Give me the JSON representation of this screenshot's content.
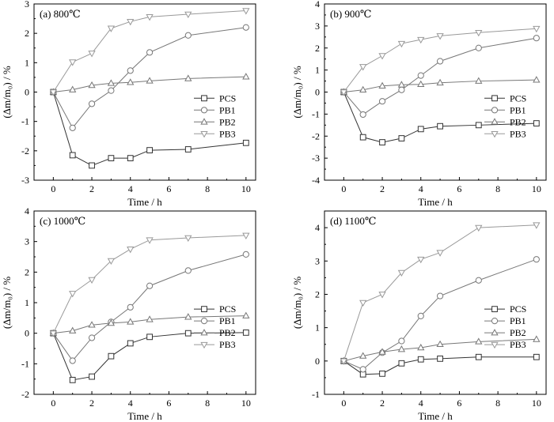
{
  "chart_data": [
    {
      "type": "line",
      "title": "(a) 800℃",
      "xlabel": "Time / h",
      "ylabel": "(Δm/m₀) / %",
      "xlim": [
        -1,
        10.5
      ],
      "ylim": [
        -3,
        3
      ],
      "xticks": [
        0,
        2,
        4,
        6,
        8,
        10
      ],
      "yticks": [
        -3,
        -2,
        -1,
        0,
        1,
        2,
        3
      ],
      "legend_position": "center-right",
      "series": [
        {
          "name": "PCS",
          "marker": "square",
          "color": "#333333",
          "x": [
            0,
            1,
            2,
            3,
            4,
            5,
            7,
            10
          ],
          "y": [
            0,
            -2.15,
            -2.5,
            -2.25,
            -2.25,
            -1.98,
            -1.95,
            -1.73
          ]
        },
        {
          "name": "PB1",
          "marker": "circle",
          "color": "#777777",
          "x": [
            0,
            1,
            2,
            3,
            4,
            5,
            7,
            10
          ],
          "y": [
            0,
            -1.22,
            -0.4,
            0.05,
            0.73,
            1.35,
            1.93,
            2.2
          ]
        },
        {
          "name": "PB2",
          "marker": "triangle-up",
          "color": "#777777",
          "x": [
            0,
            1,
            2,
            3,
            4,
            5,
            7,
            10
          ],
          "y": [
            0,
            0.08,
            0.23,
            0.3,
            0.33,
            0.38,
            0.46,
            0.52
          ]
        },
        {
          "name": "PB3",
          "marker": "triangle-down",
          "color": "#999999",
          "x": [
            0,
            1,
            2,
            3,
            4,
            5,
            7,
            10
          ],
          "y": [
            0,
            1.02,
            1.32,
            2.17,
            2.4,
            2.56,
            2.65,
            2.77
          ]
        }
      ]
    },
    {
      "type": "line",
      "title": "(b) 900℃",
      "xlabel": "Time / h",
      "ylabel": "(Δm/m₀) / %",
      "xlim": [
        -1,
        10.5
      ],
      "ylim": [
        -4,
        4
      ],
      "xticks": [
        0,
        2,
        4,
        6,
        8,
        10
      ],
      "yticks": [
        -4,
        -3,
        -2,
        -1,
        0,
        1,
        2,
        3,
        4
      ],
      "legend_position": "center-right",
      "series": [
        {
          "name": "PCS",
          "marker": "square",
          "color": "#333333",
          "x": [
            0,
            1,
            2,
            3,
            4,
            5,
            7,
            10
          ],
          "y": [
            0,
            -2.05,
            -2.28,
            -2.1,
            -1.68,
            -1.55,
            -1.5,
            -1.42
          ]
        },
        {
          "name": "PB1",
          "marker": "circle",
          "color": "#777777",
          "x": [
            0,
            1,
            2,
            3,
            4,
            5,
            7,
            10
          ],
          "y": [
            0,
            -1.02,
            -0.42,
            0.1,
            0.75,
            1.4,
            2.0,
            2.45
          ]
        },
        {
          "name": "PB2",
          "marker": "triangle-up",
          "color": "#777777",
          "x": [
            0,
            1,
            2,
            3,
            4,
            5,
            7,
            10
          ],
          "y": [
            0,
            0.1,
            0.28,
            0.33,
            0.35,
            0.42,
            0.5,
            0.55
          ]
        },
        {
          "name": "PB3",
          "marker": "triangle-down",
          "color": "#999999",
          "x": [
            0,
            1,
            2,
            3,
            4,
            5,
            7,
            10
          ],
          "y": [
            0,
            1.15,
            1.65,
            2.2,
            2.38,
            2.55,
            2.7,
            2.88
          ]
        }
      ]
    },
    {
      "type": "line",
      "title": "(c) 1000℃",
      "xlabel": "Time / h",
      "ylabel": "(Δm/m₀) / %",
      "xlim": [
        -1,
        10.5
      ],
      "ylim": [
        -2,
        4
      ],
      "xticks": [
        0,
        2,
        4,
        6,
        8,
        10
      ],
      "yticks": [
        -2,
        -1,
        0,
        1,
        2,
        3,
        4
      ],
      "legend_position": "center-right",
      "series": [
        {
          "name": "PCS",
          "marker": "square",
          "color": "#333333",
          "x": [
            0,
            1,
            2,
            3,
            4,
            5,
            7,
            10
          ],
          "y": [
            0,
            -1.53,
            -1.42,
            -0.75,
            -0.33,
            -0.12,
            0.0,
            0.02
          ]
        },
        {
          "name": "PB1",
          "marker": "circle",
          "color": "#777777",
          "x": [
            0,
            1,
            2,
            3,
            4,
            5,
            7,
            10
          ],
          "y": [
            0,
            -0.9,
            -0.15,
            0.37,
            0.85,
            1.55,
            2.05,
            2.58
          ]
        },
        {
          "name": "PB2",
          "marker": "triangle-up",
          "color": "#777777",
          "x": [
            0,
            1,
            2,
            3,
            4,
            5,
            7,
            10
          ],
          "y": [
            0,
            0.08,
            0.27,
            0.33,
            0.37,
            0.45,
            0.53,
            0.57
          ]
        },
        {
          "name": "PB3",
          "marker": "triangle-down",
          "color": "#999999",
          "x": [
            0,
            1,
            2,
            3,
            4,
            5,
            7,
            10
          ],
          "y": [
            0,
            1.3,
            1.75,
            2.37,
            2.75,
            3.05,
            3.12,
            3.2
          ]
        }
      ]
    },
    {
      "type": "line",
      "title": "(d) 1100℃",
      "xlabel": "Time / h",
      "ylabel": "(Δm/m₀) / %",
      "xlim": [
        -1,
        10.5
      ],
      "ylim": [
        -1,
        4.5
      ],
      "xticks": [
        0,
        2,
        4,
        6,
        8,
        10
      ],
      "yticks": [
        -1,
        0,
        1,
        2,
        3,
        4
      ],
      "legend_position": "center-right",
      "series": [
        {
          "name": "PCS",
          "marker": "square",
          "color": "#333333",
          "x": [
            0,
            1,
            2,
            3,
            4,
            5,
            7,
            10
          ],
          "y": [
            0,
            -0.4,
            -0.38,
            -0.07,
            0.05,
            0.07,
            0.12,
            0.12
          ]
        },
        {
          "name": "PB1",
          "marker": "circle",
          "color": "#777777",
          "x": [
            0,
            1,
            2,
            3,
            4,
            5,
            7,
            10
          ],
          "y": [
            0,
            -0.25,
            0.25,
            0.6,
            1.35,
            1.95,
            2.42,
            3.05
          ]
        },
        {
          "name": "PB2",
          "marker": "triangle-up",
          "color": "#777777",
          "x": [
            0,
            1,
            2,
            3,
            4,
            5,
            7,
            10
          ],
          "y": [
            0,
            0.15,
            0.27,
            0.35,
            0.4,
            0.5,
            0.58,
            0.65
          ]
        },
        {
          "name": "PB3",
          "marker": "triangle-down",
          "color": "#999999",
          "x": [
            0,
            1,
            2,
            3,
            4,
            5,
            7,
            10
          ],
          "y": [
            0,
            1.75,
            2.0,
            2.65,
            3.05,
            3.25,
            4.0,
            4.08
          ]
        }
      ]
    }
  ]
}
